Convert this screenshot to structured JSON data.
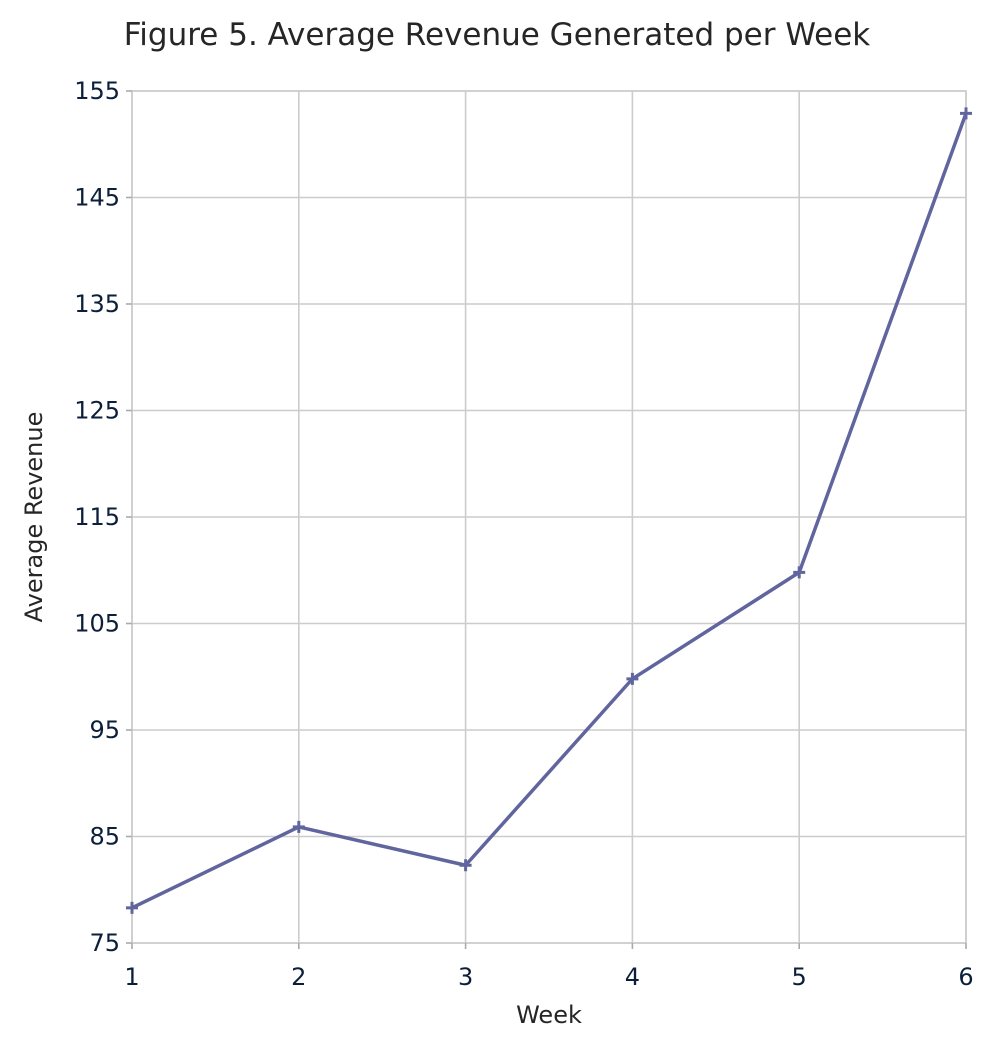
{
  "chart_data": {
    "type": "line",
    "title": "Figure 5. Average Revenue Generated per Week",
    "xlabel": "Week",
    "ylabel": "Average Revenue",
    "x": [
      1,
      2,
      3,
      4,
      5,
      6
    ],
    "series": [
      {
        "values": [
          78.3,
          85.9,
          82.3,
          99.8,
          109.8,
          152.9
        ],
        "color": "#61659e",
        "marker": "plus"
      }
    ],
    "xlim": [
      1,
      6
    ],
    "ylim": [
      75,
      155
    ],
    "xticks": [
      "1",
      "2",
      "3",
      "4",
      "5",
      "6"
    ],
    "yticks": [
      "75",
      "85",
      "95",
      "105",
      "115",
      "125",
      "135",
      "145",
      "155"
    ],
    "grid": true,
    "legend": "none"
  }
}
